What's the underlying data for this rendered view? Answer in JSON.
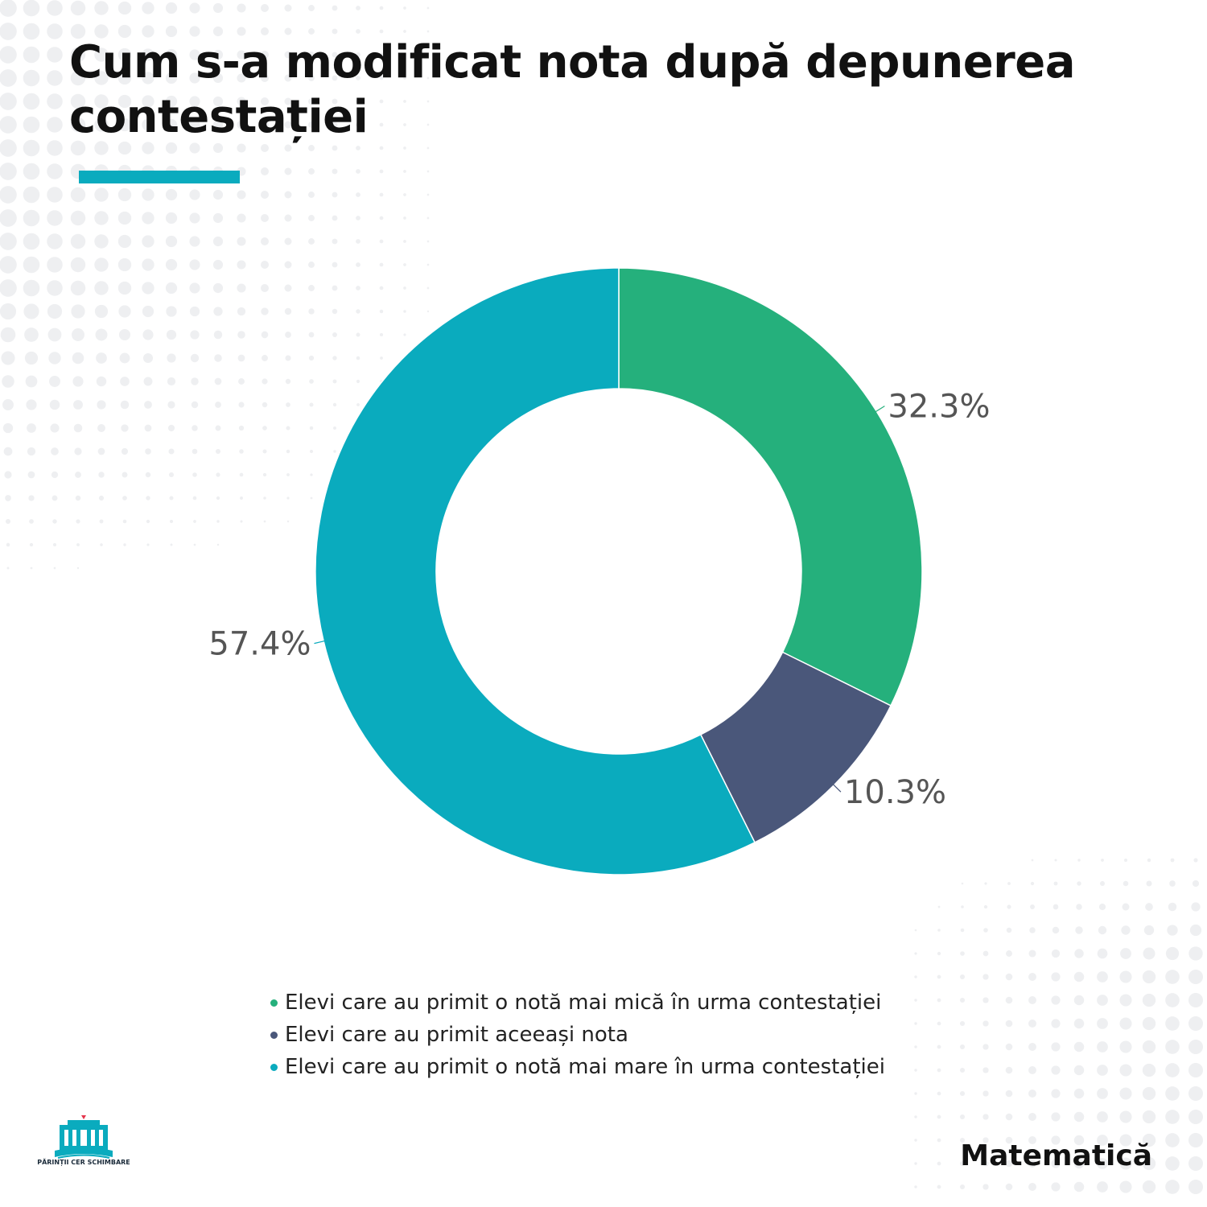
{
  "title": "Cum s-a modificat nota după depunerea contestației",
  "subject_label": "Matematică",
  "logo_text": "PĂRINȚII CER SCHIMBARE",
  "colors": {
    "accent": "#0aabbe",
    "green": "#25b07c",
    "navy": "#4a577a",
    "teal": "#0aabbe"
  },
  "chart_data": {
    "type": "pie",
    "donut": true,
    "categories": [
      "Elevi care au primit o notă mai mică în urma contestației",
      "Elevi care au primit aceeași nota",
      "Elevi care au primit o notă mai mare în urma contestației"
    ],
    "values": [
      32.3,
      10.3,
      57.4
    ],
    "labels": [
      "32.3%",
      "10.3%",
      "57.4%"
    ],
    "colors": [
      "#25b07c",
      "#4a577a",
      "#0aabbe"
    ],
    "legend_position": "bottom"
  }
}
